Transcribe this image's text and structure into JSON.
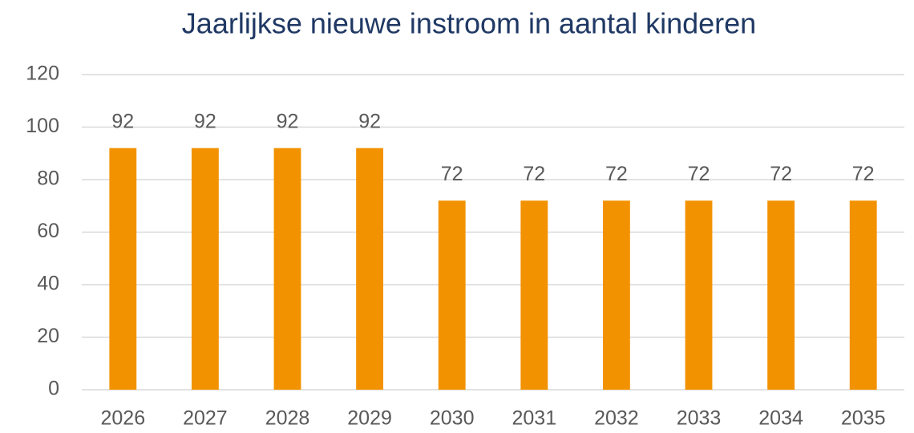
{
  "chart_data": {
    "type": "bar",
    "title": "Jaarlijkse nieuwe instroom in aantal kinderen",
    "categories": [
      "2026",
      "2027",
      "2028",
      "2029",
      "2030",
      "2031",
      "2032",
      "2033",
      "2034",
      "2035"
    ],
    "values": [
      92,
      92,
      92,
      92,
      72,
      72,
      72,
      72,
      72,
      72
    ],
    "color": "#f39200",
    "ylim": [
      0,
      120
    ],
    "yticks": [
      0,
      20,
      40,
      60,
      80,
      100,
      120
    ],
    "grid": true,
    "data_labels": true
  }
}
